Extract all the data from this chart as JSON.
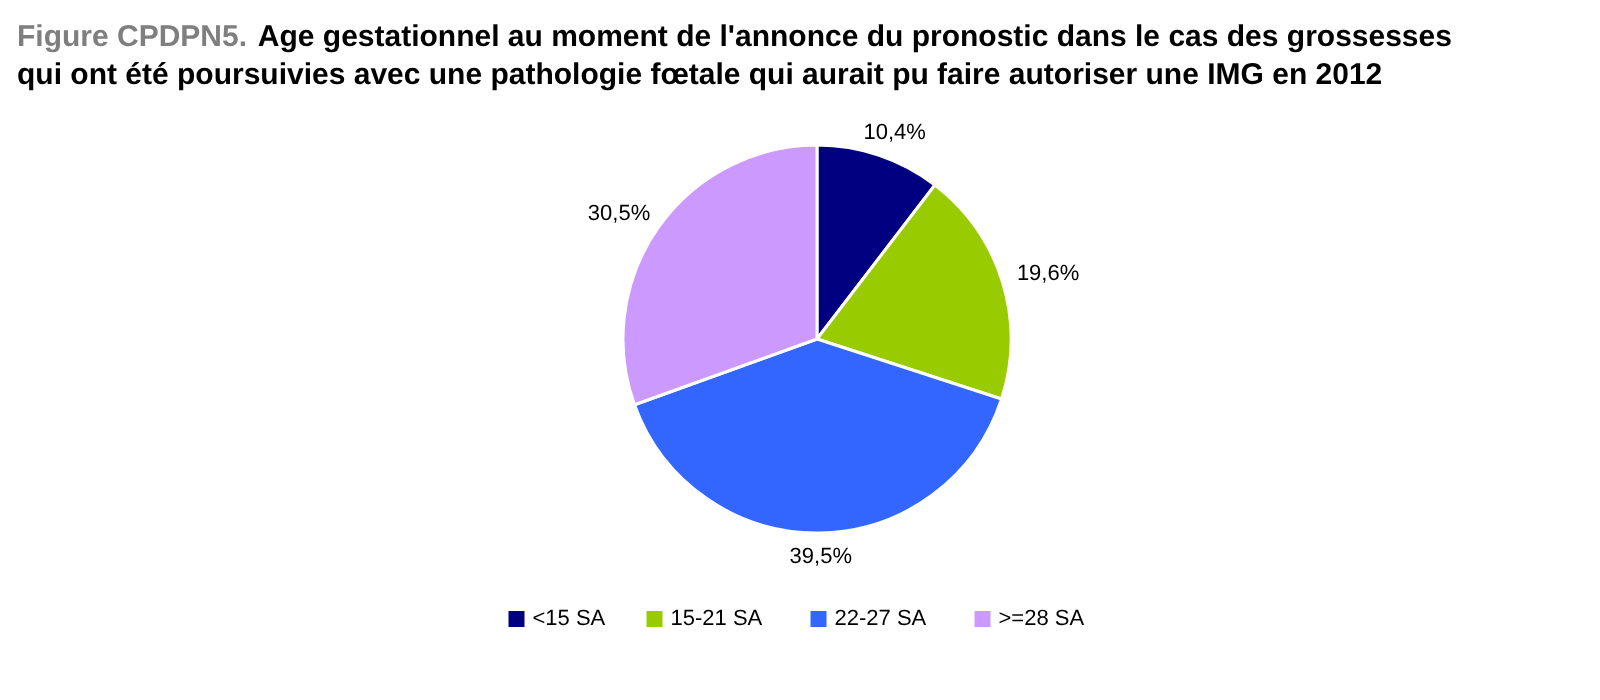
{
  "chart_data": {
    "type": "pie",
    "title": "Figure CPDPN5.",
    "subtitle": "Age gestationnel au moment de l'annonce du pronostic dans le cas des grossesses qui ont été poursuivies avec une pathologie fœtale qui aurait pu faire autoriser une IMG en 2012",
    "categories": [
      "<15 SA",
      "15-21 SA",
      "22-27 SA",
      ">=28 SA"
    ],
    "values": [
      10.4,
      19.6,
      39.5,
      30.5
    ],
    "value_labels": [
      "10,4%",
      "19,6%",
      "39,5%",
      "30,5%"
    ],
    "colors": [
      "#000080",
      "#99cc00",
      "#3366ff",
      "#cc99ff"
    ],
    "legend": "bottom"
  }
}
